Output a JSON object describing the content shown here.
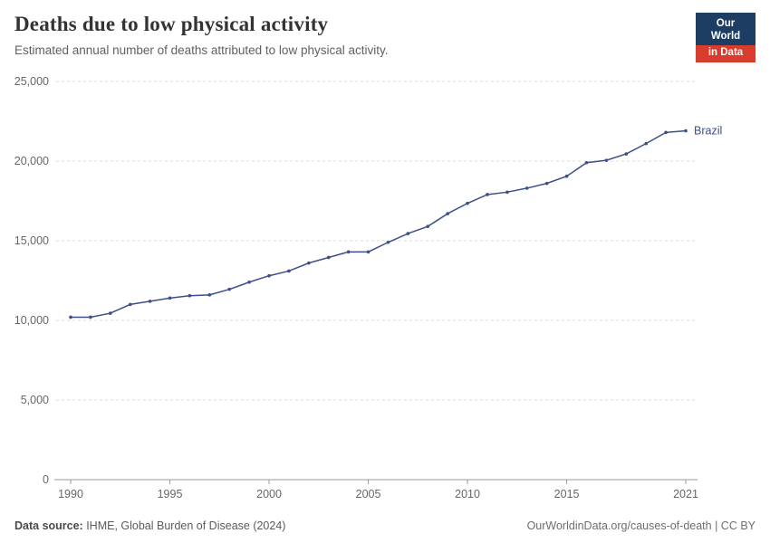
{
  "header": {
    "title": "Deaths due to low physical activity",
    "subtitle": "Estimated annual number of deaths attributed to low physical activity."
  },
  "logo": {
    "line1": "Our World",
    "line2": "in Data",
    "bg_color": "#1d3d63",
    "accent_color": "#d73c2c"
  },
  "chart_data": {
    "type": "line",
    "title": "Deaths due to low physical activity",
    "xlabel": "",
    "ylabel": "",
    "ylim": [
      0,
      25000
    ],
    "yticks": [
      0,
      5000,
      10000,
      15000,
      20000,
      25000
    ],
    "xticks": [
      1990,
      1995,
      2000,
      2005,
      2010,
      2015,
      2021
    ],
    "grid": "dashed-horizontal",
    "legend": "end-of-line-label",
    "x": [
      1990,
      1991,
      1992,
      1993,
      1994,
      1995,
      1996,
      1997,
      1998,
      1999,
      2000,
      2001,
      2002,
      2003,
      2004,
      2005,
      2006,
      2007,
      2008,
      2009,
      2010,
      2011,
      2012,
      2013,
      2014,
      2015,
      2016,
      2017,
      2018,
      2019,
      2020,
      2021
    ],
    "series": [
      {
        "name": "Brazil",
        "color": "#3d4e8a",
        "values": [
          10200,
          10200,
          10450,
          11000,
          11200,
          11400,
          11550,
          11600,
          11950,
          12400,
          12800,
          13100,
          13600,
          13950,
          14300,
          14300,
          14900,
          15450,
          15900,
          16700,
          17350,
          17900,
          18050,
          18300,
          18600,
          19050,
          19900,
          20050,
          20450,
          21100,
          21800,
          21900
        ]
      }
    ],
    "colors": {
      "gridline": "#dddddd",
      "axis": "#999999",
      "tick_label": "#666666"
    }
  },
  "footer": {
    "source_label": "Data source:",
    "source_text": " IHME, Global Burden of Disease (2024)",
    "credit": "OurWorldinData.org/causes-of-death | CC BY"
  }
}
